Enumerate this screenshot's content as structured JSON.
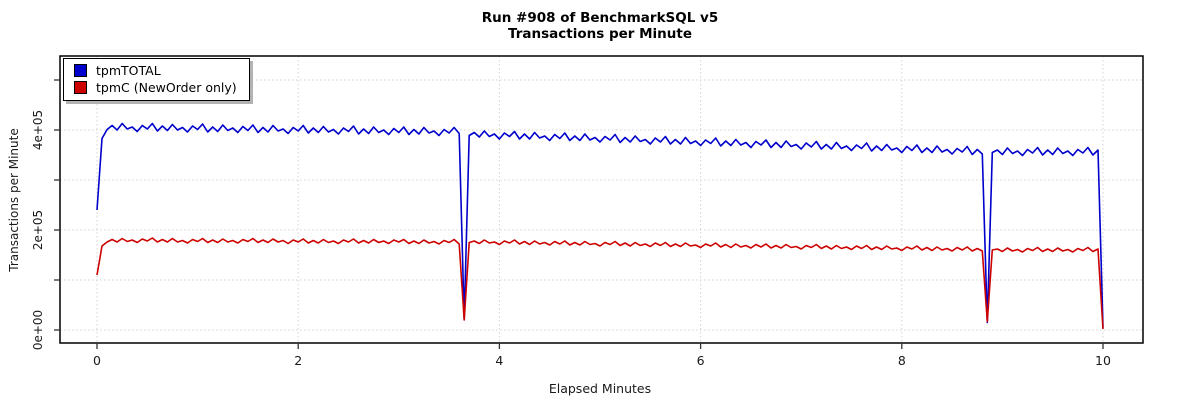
{
  "chart_data": {
    "type": "line",
    "title": "Run #908 of BenchmarkSQL v5",
    "subtitle": "Transactions per Minute",
    "xlabel": "Elapsed Minutes",
    "ylabel": "Transactions per Minute",
    "xlim": [
      0,
      10
    ],
    "ylim": [
      0,
      500000
    ],
    "grid": "dotted light-gray, both axes",
    "legend_position": "top-left",
    "x_ticks": [
      0,
      2,
      4,
      6,
      8,
      10
    ],
    "x_tick_labels": [
      "0",
      "2",
      "4",
      "6",
      "8",
      "10"
    ],
    "y_tick_values": [
      0,
      100000,
      200000,
      300000,
      400000,
      500000
    ],
    "y_tick_labels": [
      "0e+00",
      "",
      "2e+05",
      "",
      "4e+05",
      ""
    ],
    "y_scale": 1000,
    "x_start": 0,
    "x_step": 0.05,
    "series": [
      {
        "name": "tpmTOTAL",
        "color": "#0000CD",
        "y": [
          240,
          383,
          401,
          409,
          400,
          413,
          402,
          406,
          397,
          409,
          402,
          413,
          398,
          408,
          399,
          411,
          400,
          405,
          396,
          408,
          401,
          412,
          396,
          406,
          397,
          410,
          399,
          404,
          395,
          407,
          399,
          410,
          395,
          405,
          396,
          409,
          398,
          402,
          393,
          405,
          398,
          409,
          394,
          404,
          395,
          407,
          396,
          401,
          392,
          404,
          397,
          408,
          392,
          402,
          393,
          406,
          395,
          400,
          391,
          403,
          395,
          406,
          391,
          401,
          392,
          405,
          394,
          398,
          389,
          401,
          394,
          405,
          393,
          22,
          389,
          395,
          386,
          398,
          387,
          392,
          382,
          394,
          387,
          397,
          382,
          392,
          382,
          395,
          384,
          388,
          379,
          391,
          383,
          394,
          379,
          388,
          379,
          392,
          380,
          385,
          376,
          387,
          380,
          391,
          375,
          385,
          376,
          388,
          377,
          381,
          372,
          384,
          376,
          387,
          372,
          381,
          372,
          385,
          373,
          378,
          369,
          380,
          373,
          384,
          368,
          378,
          369,
          381,
          370,
          375,
          365,
          377,
          370,
          380,
          365,
          375,
          365,
          378,
          367,
          371,
          362,
          374,
          366,
          377,
          362,
          371,
          362,
          375,
          363,
          368,
          359,
          370,
          363,
          374,
          358,
          368,
          359,
          371,
          360,
          364,
          355,
          367,
          359,
          370,
          355,
          364,
          355,
          368,
          356,
          361,
          352,
          363,
          356,
          367,
          351,
          361,
          352,
          15,
          355,
          360,
          351,
          364,
          353,
          358,
          349,
          361,
          354,
          365,
          350,
          360,
          351,
          364,
          353,
          358,
          349,
          361,
          354,
          365,
          350,
          360,
          5
        ]
      },
      {
        "name": "tpmC (NewOrder only)",
        "color": "#CD0000",
        "y": [
          110,
          168,
          176,
          181,
          176,
          183,
          177,
          180,
          175,
          182,
          178,
          184,
          176,
          181,
          176,
          183,
          176,
          179,
          174,
          181,
          177,
          183,
          175,
          180,
          175,
          182,
          176,
          179,
          174,
          181,
          177,
          183,
          175,
          180,
          175,
          182,
          176,
          179,
          173,
          180,
          176,
          182,
          174,
          179,
          174,
          181,
          175,
          178,
          173,
          180,
          176,
          182,
          174,
          179,
          174,
          181,
          175,
          178,
          173,
          180,
          176,
          181,
          173,
          178,
          173,
          180,
          174,
          177,
          172,
          179,
          175,
          181,
          172,
          20,
          175,
          178,
          173,
          180,
          174,
          176,
          171,
          178,
          174,
          180,
          172,
          177,
          171,
          178,
          172,
          175,
          170,
          177,
          172,
          178,
          170,
          175,
          170,
          177,
          171,
          173,
          168,
          175,
          171,
          177,
          169,
          174,
          168,
          175,
          169,
          172,
          167,
          174,
          169,
          175,
          167,
          172,
          167,
          174,
          168,
          170,
          165,
          172,
          168,
          174,
          166,
          171,
          165,
          172,
          166,
          169,
          164,
          171,
          166,
          172,
          164,
          169,
          164,
          171,
          165,
          167,
          162,
          169,
          165,
          171,
          163,
          168,
          162,
          169,
          163,
          166,
          161,
          168,
          163,
          169,
          161,
          166,
          161,
          168,
          162,
          164,
          159,
          166,
          162,
          168,
          160,
          165,
          159,
          166,
          160,
          163,
          158,
          165,
          160,
          166,
          158,
          163,
          158,
          17,
          160,
          162,
          157,
          164,
          158,
          161,
          156,
          163,
          159,
          165,
          157,
          162,
          157,
          164,
          158,
          161,
          156,
          163,
          159,
          165,
          157,
          162,
          2
        ]
      }
    ]
  }
}
